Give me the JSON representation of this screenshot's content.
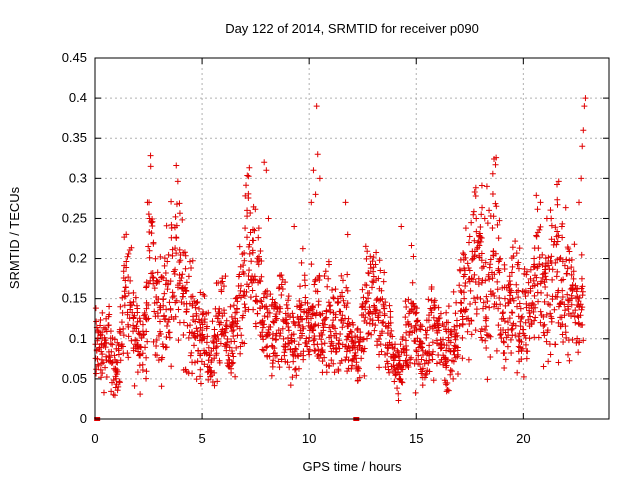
{
  "chart_data": {
    "type": "scatter",
    "title": "Day 122 of 2014, SRMTID for receiver p090",
    "xlabel": "GPS time / hours",
    "ylabel": "SRMTID / TECUs",
    "xlim": [
      0,
      24
    ],
    "ylim": [
      0,
      0.45
    ],
    "grid": true,
    "x_ticks": [
      "0",
      "5",
      "10",
      "15",
      "20"
    ],
    "y_ticks": [
      "0",
      "0.05",
      "0.1",
      "0.15",
      "0.2",
      "0.25",
      "0.3",
      "0.35",
      "0.4",
      "0.45"
    ],
    "marker": "plus",
    "color": "#e00000",
    "series": [
      {
        "name": "SRMTID",
        "x": [
          0.1,
          0.3,
          0.5,
          0.7,
          0.9,
          1.1,
          1.3,
          1.5,
          1.7,
          1.9,
          2.1,
          2.3,
          2.5,
          2.7,
          2.9,
          3.1,
          3.3,
          3.5,
          3.7,
          3.9,
          4.1,
          4.3,
          4.5,
          4.7,
          4.9,
          5.1,
          5.3,
          5.5,
          5.7,
          5.9,
          6.1,
          6.3,
          6.5,
          6.7,
          6.9,
          7.1,
          7.3,
          7.5,
          7.7,
          7.9,
          8.1,
          8.3,
          8.5,
          8.7,
          8.9,
          9.1,
          9.3,
          9.5,
          9.7,
          9.9,
          10.1,
          10.3,
          10.5,
          10.7,
          10.9,
          11.1,
          11.3,
          11.5,
          11.7,
          11.9,
          12.1,
          12.3,
          12.5,
          12.7,
          12.9,
          13.1,
          13.3,
          13.5,
          13.7,
          13.9,
          14.1,
          14.3,
          14.5,
          14.7,
          14.9,
          15.1,
          15.3,
          15.5,
          15.7,
          15.9,
          16.1,
          16.3,
          16.5,
          16.7,
          16.9,
          17.1,
          17.3,
          17.5,
          17.7,
          17.9,
          18.1,
          18.3,
          18.5,
          18.7,
          18.9,
          19.1,
          19.3,
          19.5,
          19.7,
          19.9,
          20.1,
          20.3,
          20.5,
          20.7,
          20.9,
          21.1,
          21.3,
          21.5,
          21.7,
          21.9,
          22.1,
          22.3,
          22.5,
          22.7
        ],
        "y": [
          0.09,
          0.08,
          0.1,
          0.07,
          0.06,
          0.11,
          0.16,
          0.14,
          0.12,
          0.1,
          0.09,
          0.13,
          0.22,
          0.16,
          0.12,
          0.14,
          0.17,
          0.19,
          0.21,
          0.17,
          0.15,
          0.13,
          0.12,
          0.11,
          0.1,
          0.09,
          0.08,
          0.1,
          0.12,
          0.11,
          0.1,
          0.09,
          0.11,
          0.14,
          0.17,
          0.22,
          0.18,
          0.16,
          0.14,
          0.12,
          0.1,
          0.11,
          0.13,
          0.12,
          0.1,
          0.09,
          0.1,
          0.12,
          0.13,
          0.11,
          0.12,
          0.13,
          0.12,
          0.14,
          0.11,
          0.1,
          0.12,
          0.13,
          0.12,
          0.1,
          0.08,
          0.09,
          0.13,
          0.16,
          0.15,
          0.14,
          0.12,
          0.11,
          0.1,
          0.07,
          0.06,
          0.08,
          0.1,
          0.14,
          0.1,
          0.09,
          0.08,
          0.11,
          0.12,
          0.1,
          0.09,
          0.08,
          0.09,
          0.1,
          0.11,
          0.15,
          0.17,
          0.18,
          0.21,
          0.19,
          0.17,
          0.16,
          0.22,
          0.2,
          0.15,
          0.13,
          0.14,
          0.16,
          0.14,
          0.12,
          0.13,
          0.15,
          0.17,
          0.16,
          0.15,
          0.14,
          0.18,
          0.2,
          0.15,
          0.16,
          0.14,
          0.15,
          0.12,
          0.16
        ],
        "spikes": [
          [
            2.45,
            0.27
          ],
          [
            2.55,
            0.25
          ],
          [
            7.1,
            0.26
          ],
          [
            7.9,
            0.32
          ],
          [
            8.0,
            0.31
          ],
          [
            8.1,
            0.25
          ],
          [
            9.3,
            0.24
          ],
          [
            10.1,
            0.27
          ],
          [
            10.2,
            0.31
          ],
          [
            10.3,
            0.28
          ],
          [
            10.35,
            0.39
          ],
          [
            10.4,
            0.33
          ],
          [
            10.5,
            0.3
          ],
          [
            11.7,
            0.27
          ],
          [
            11.8,
            0.23
          ],
          [
            14.3,
            0.24
          ],
          [
            17.8,
            0.25
          ],
          [
            18.2,
            0.25
          ],
          [
            18.3,
            0.29
          ],
          [
            18.4,
            0.26
          ],
          [
            20.8,
            0.27
          ],
          [
            21.1,
            0.25
          ],
          [
            21.3,
            0.25
          ],
          [
            21.8,
            0.24
          ],
          [
            22.6,
            0.27
          ],
          [
            22.7,
            0.3
          ],
          [
            22.75,
            0.34
          ],
          [
            22.8,
            0.36
          ],
          [
            22.85,
            0.39
          ],
          [
            22.9,
            0.4
          ]
        ],
        "zero_markers": [
          [
            0.1,
            0
          ],
          [
            12.2,
            0
          ]
        ]
      }
    ]
  }
}
